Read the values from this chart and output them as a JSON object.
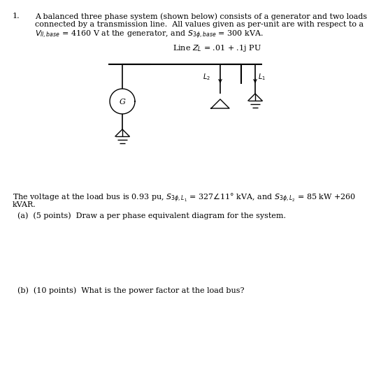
{
  "title_number": "1.",
  "para1_line1": "A balanced three phase system (shown below) consists of a generator and two loads",
  "para1_line2": "connected by a transmission line.  All values given as per-unit are with respect to a",
  "para1_line3": "$V_{ll,base}$ = 4160 V at the generator, and $S_{3\\phi,base}$ = 300 kVA.",
  "line_label": "Line $Z_L$ = .01 + .1j PU",
  "load_line1": "The voltage at the load bus is 0.93 pu, $S_{3\\phi,L_1}$ = 327$\\angle$11° kVA, and $S_{3\\phi,L_2}$ = 85 kW +260",
  "load_line2": "kVAR.",
  "part_a": "(a)  (5 points)  Draw a per phase equivalent diagram for the system.",
  "part_b": "(b)  (10 points)  What is the power factor at the load bus?",
  "bg_color": "#ffffff",
  "text_color": "#000000",
  "font_size": 8.0
}
